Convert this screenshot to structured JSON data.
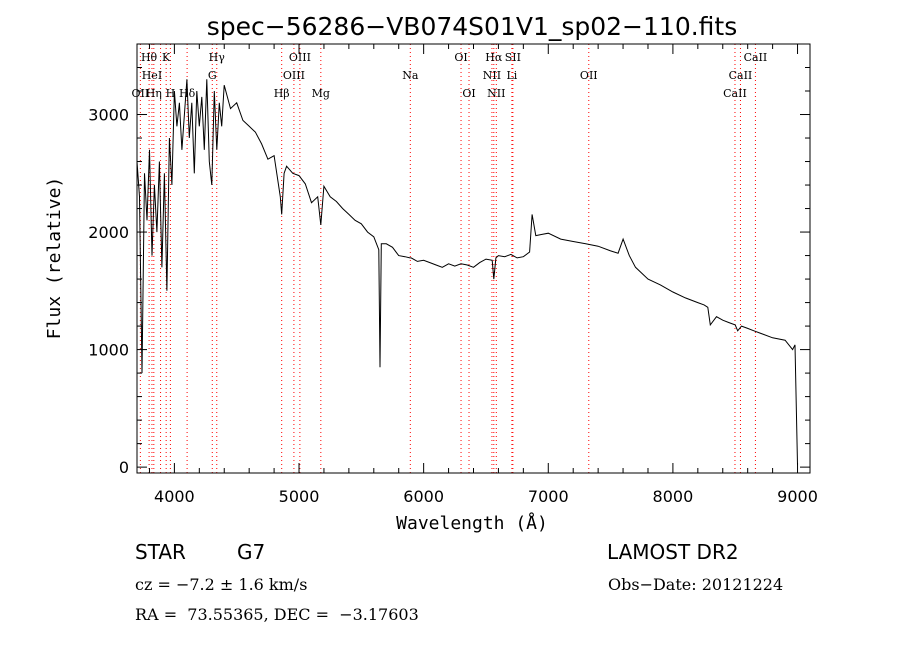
{
  "chart_data": {
    "type": "line",
    "title": "spec−56286−VB074S01V1_sp02−110.fits",
    "xlabel": "Wavelength (Å)",
    "ylabel": "Flux (relative)",
    "xlim": [
      3700,
      9100
    ],
    "ylim": [
      -50,
      3600
    ],
    "xticks": [
      4000,
      5000,
      6000,
      7000,
      8000,
      9000
    ],
    "yticks": [
      0,
      1000,
      2000,
      3000
    ],
    "grid": false,
    "line_color": "#000000",
    "marker_color": "#ff0000",
    "series": [
      {
        "x": [
          3700,
          3720,
          3740,
          3760,
          3780,
          3800,
          3820,
          3840,
          3860,
          3880,
          3900,
          3920,
          3940,
          3960,
          3980,
          4000,
          4020,
          4040,
          4060,
          4080,
          4100,
          4120,
          4140,
          4160,
          4180,
          4200,
          4220,
          4240,
          4260,
          4280,
          4300,
          4320,
          4340,
          4360,
          4380,
          4400,
          4450,
          4500,
          4550,
          4600,
          4650,
          4700,
          4750,
          4800,
          4850,
          4861,
          4880,
          4900,
          4950,
          5000,
          5050,
          5100,
          5150,
          5175,
          5200,
          5250,
          5300,
          5350,
          5400,
          5450,
          5500,
          5550,
          5600,
          5640,
          5650,
          5660,
          5670,
          5700,
          5750,
          5800,
          5850,
          5890,
          5900,
          5950,
          6000,
          6050,
          6100,
          6150,
          6200,
          6250,
          6300,
          6350,
          6400,
          6450,
          6500,
          6550,
          6563,
          6580,
          6600,
          6650,
          6700,
          6750,
          6800,
          6850,
          6870,
          6900,
          6950,
          7000,
          7100,
          7200,
          7300,
          7400,
          7500,
          7560,
          7600,
          7650,
          7700,
          7800,
          7900,
          8000,
          8100,
          8200,
          8250,
          8280,
          8300,
          8350,
          8400,
          8450,
          8500,
          8520,
          8550,
          8600,
          8650,
          8700,
          8800,
          8900,
          8960,
          8980,
          9000
        ],
        "y": [
          2600,
          2300,
          800,
          2500,
          2100,
          2700,
          1800,
          2400,
          2000,
          2600,
          1700,
          2500,
          1500,
          2800,
          2400,
          3200,
          2900,
          3100,
          2700,
          3000,
          3300,
          2800,
          3100,
          2500,
          3200,
          2900,
          3150,
          2700,
          3300,
          2600,
          2400,
          3200,
          2700,
          3100,
          2900,
          3250,
          3050,
          3100,
          2950,
          2900,
          2850,
          2750,
          2620,
          2650,
          2300,
          2150,
          2500,
          2560,
          2500,
          2480,
          2410,
          2250,
          2300,
          2060,
          2390,
          2300,
          2260,
          2200,
          2150,
          2100,
          2070,
          2000,
          1960,
          1850,
          850,
          1900,
          1900,
          1900,
          1870,
          1800,
          1790,
          1780,
          1780,
          1750,
          1760,
          1740,
          1720,
          1700,
          1730,
          1710,
          1730,
          1720,
          1700,
          1740,
          1770,
          1760,
          1600,
          1780,
          1800,
          1790,
          1810,
          1780,
          1790,
          1830,
          2150,
          1970,
          1980,
          1990,
          1940,
          1920,
          1900,
          1880,
          1840,
          1820,
          1940,
          1800,
          1700,
          1600,
          1550,
          1490,
          1440,
          1400,
          1380,
          1360,
          1210,
          1280,
          1250,
          1230,
          1210,
          1160,
          1200,
          1180,
          1160,
          1140,
          1100,
          1080,
          1000,
          1040,
          20
        ]
      }
    ],
    "lines": [
      {
        "label": "Hθ",
        "x": 3797,
        "row": 1
      },
      {
        "label": "OII",
        "x": 3727,
        "row": 3
      },
      {
        "label": "HeI",
        "x": 3820,
        "row": 2
      },
      {
        "label": "Hη",
        "x": 3835,
        "row": 3
      },
      {
        "label": "K",
        "x": 3934,
        "row": 1
      },
      {
        "label": "H",
        "x": 3968,
        "row": 3
      },
      {
        "label": "Hδ",
        "x": 4102,
        "row": 3
      },
      {
        "label": "Hγ",
        "x": 4340,
        "row": 1
      },
      {
        "label": "G",
        "x": 4304,
        "row": 2
      },
      {
        "label": "Hβ",
        "x": 4861,
        "row": 3
      },
      {
        "label": "OIII",
        "x": 5007,
        "row": 1
      },
      {
        "label": "OIII",
        "x": 4959,
        "row": 2
      },
      {
        "label": "Mg",
        "x": 5175,
        "row": 3
      },
      {
        "label": "Na",
        "x": 5893,
        "row": 2
      },
      {
        "label": "OI",
        "x": 6300,
        "row": 1
      },
      {
        "label": "OI",
        "x": 6364,
        "row": 3
      },
      {
        "label": "Hα",
        "x": 6563,
        "row": 1
      },
      {
        "label": "SII",
        "x": 6716,
        "row": 1
      },
      {
        "label": "NII",
        "x": 6548,
        "row": 2
      },
      {
        "label": "NII",
        "x": 6583,
        "row": 3
      },
      {
        "label": "Li",
        "x": 6708,
        "row": 2
      },
      {
        "label": "OII",
        "x": 7325,
        "row": 2
      },
      {
        "label": "CaII",
        "x": 8662,
        "row": 1
      },
      {
        "label": "CaII",
        "x": 8542,
        "row": 2
      },
      {
        "label": "CaII",
        "x": 8498,
        "row": 3
      }
    ],
    "marker_lines_x": [
      3727,
      3797,
      3820,
      3835,
      3889,
      3934,
      3968,
      4102,
      4304,
      4340,
      4861,
      4959,
      5007,
      5175,
      5893,
      6300,
      6364,
      6548,
      6563,
      6583,
      6708,
      6716,
      7325,
      8498,
      8542,
      8662
    ]
  },
  "info": {
    "class_label": "STAR",
    "subclass": "G7",
    "survey": "LAMOST DR2",
    "cz_text": "cz = −7.2 ± 1.6 km/s",
    "obs_date_text": "Obs−Date: 20121224",
    "coords_text": "RA =  73.55365, DEC =  −3.17603"
  }
}
